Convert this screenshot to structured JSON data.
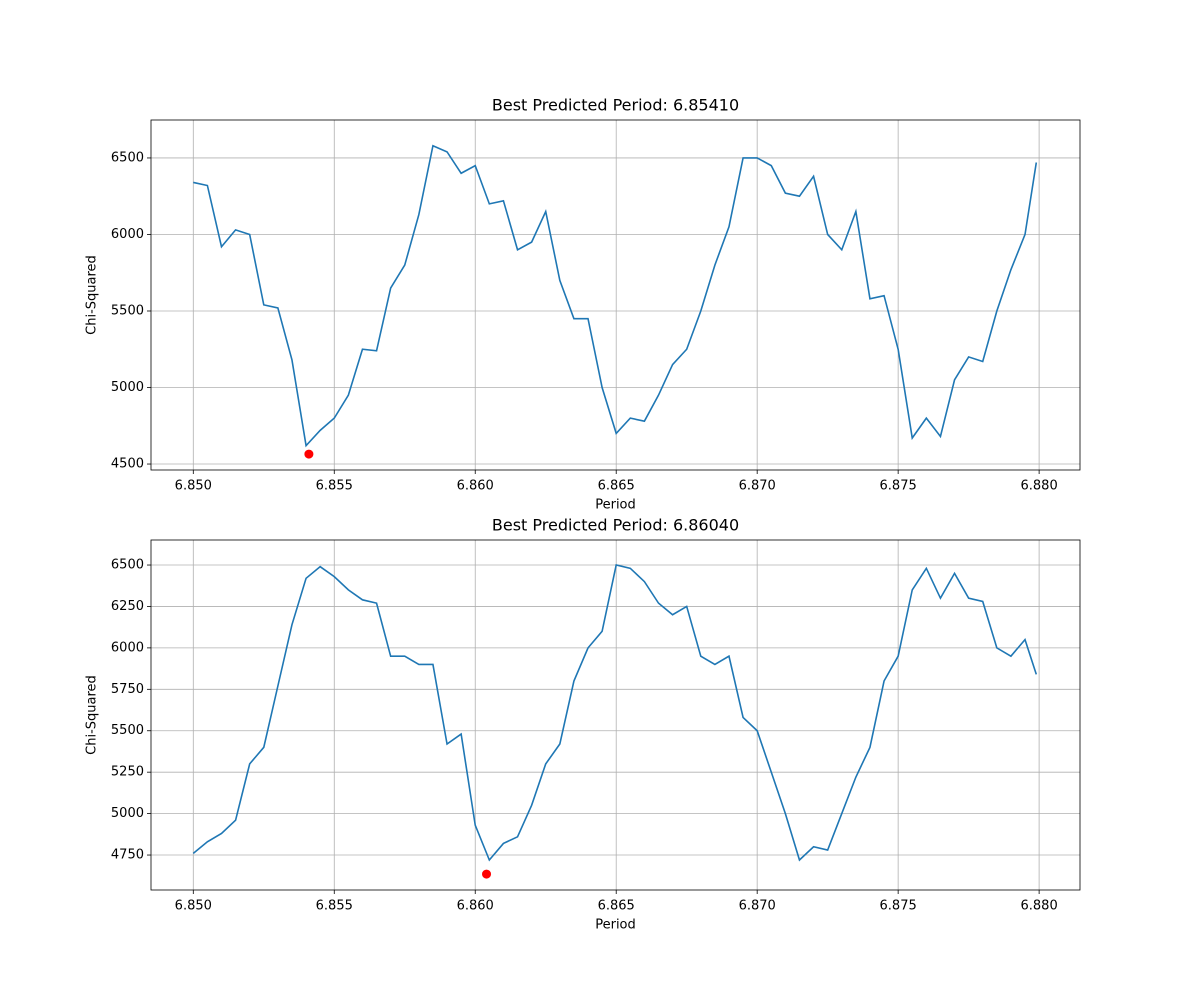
{
  "chart_data": [
    {
      "type": "line",
      "title": "Best Predicted Period: 6.85410",
      "xlabel": "Period",
      "ylabel": "Chi-Squared",
      "grid": true,
      "x": [
        6.85,
        6.8505,
        6.851,
        6.8515,
        6.852,
        6.8525,
        6.853,
        6.8535,
        6.854,
        6.8545,
        6.855,
        6.8555,
        6.856,
        6.8565,
        6.857,
        6.8575,
        6.858,
        6.8585,
        6.859,
        6.8595,
        6.86,
        6.8605,
        6.861,
        6.8615,
        6.862,
        6.8625,
        6.863,
        6.8635,
        6.864,
        6.8645,
        6.865,
        6.8655,
        6.866,
        6.8665,
        6.867,
        6.8675,
        6.868,
        6.8685,
        6.869,
        6.8695,
        6.87,
        6.8705,
        6.871,
        6.8715,
        6.872,
        6.8725,
        6.873,
        6.8735,
        6.874,
        6.8745,
        6.875,
        6.8755,
        6.876,
        6.8765,
        6.877,
        6.8775,
        6.878,
        6.8785,
        6.879,
        6.8795,
        6.8799
      ],
      "series": [
        {
          "color": "#1f77b4",
          "values": [
            6340,
            6320,
            5920,
            6030,
            6000,
            5540,
            5520,
            5180,
            4620,
            4720,
            4800,
            4950,
            5250,
            5240,
            5650,
            5800,
            6130,
            6580,
            6540,
            6400,
            6450,
            6200,
            6220,
            5900,
            5950,
            6150,
            5700,
            5450,
            5450,
            5000,
            4700,
            4800,
            4780,
            4950,
            5150,
            5250,
            5500,
            5800,
            6050,
            6500,
            6500,
            6450,
            6270,
            6250,
            6380,
            6000,
            5900,
            6150,
            5580,
            5600,
            5250,
            4670,
            4800,
            4680,
            5050,
            5200,
            5170,
            5500,
            5770,
            6000,
            6470
          ]
        }
      ],
      "best": {
        "x": 6.8541,
        "y": 4565,
        "color": "#ff0000"
      },
      "xlim": [
        6.8485,
        6.88145
      ],
      "ylim": [
        4461,
        6748
      ],
      "xticks": [
        {
          "value": 6.85,
          "label": "6.850"
        },
        {
          "value": 6.855,
          "label": "6.855"
        },
        {
          "value": 6.86,
          "label": "6.860"
        },
        {
          "value": 6.865,
          "label": "6.865"
        },
        {
          "value": 6.87,
          "label": "6.870"
        },
        {
          "value": 6.875,
          "label": "6.875"
        },
        {
          "value": 6.88,
          "label": "6.880"
        }
      ],
      "yticks": [
        4500,
        5000,
        5500,
        6000,
        6500
      ]
    },
    {
      "type": "line",
      "title": "Best Predicted Period: 6.86040",
      "xlabel": "Period",
      "ylabel": "Chi-Squared",
      "grid": true,
      "x": [
        6.85,
        6.8505,
        6.851,
        6.8515,
        6.852,
        6.8525,
        6.853,
        6.8535,
        6.854,
        6.8545,
        6.855,
        6.8555,
        6.856,
        6.8565,
        6.857,
        6.8575,
        6.858,
        6.8585,
        6.859,
        6.8595,
        6.86,
        6.8605,
        6.861,
        6.8615,
        6.862,
        6.8625,
        6.863,
        6.8635,
        6.864,
        6.8645,
        6.865,
        6.8655,
        6.866,
        6.8665,
        6.867,
        6.8675,
        6.868,
        6.8685,
        6.869,
        6.8695,
        6.87,
        6.8705,
        6.871,
        6.8715,
        6.872,
        6.8725,
        6.873,
        6.8735,
        6.874,
        6.8745,
        6.875,
        6.8755,
        6.876,
        6.8765,
        6.877,
        6.8775,
        6.878,
        6.8785,
        6.879,
        6.8795,
        6.8799
      ],
      "series": [
        {
          "color": "#1f77b4",
          "values": [
            4760,
            4830,
            4880,
            4960,
            5300,
            5400,
            5770,
            6140,
            6420,
            6490,
            6430,
            6350,
            6290,
            6270,
            5950,
            5950,
            5900,
            5900,
            5420,
            5480,
            4930,
            4720,
            4820,
            4860,
            5050,
            5300,
            5420,
            5800,
            6000,
            6100,
            6500,
            6480,
            6400,
            6270,
            6200,
            6250,
            5950,
            5900,
            5950,
            5580,
            5500,
            5250,
            5000,
            4720,
            4800,
            4780,
            5000,
            5220,
            5400,
            5800,
            5950,
            6350,
            6480,
            6300,
            6450,
            6300,
            6280,
            6000,
            5950,
            6050,
            5840
          ]
        }
      ],
      "best": {
        "x": 6.8604,
        "y": 4635,
        "color": "#ff0000"
      },
      "xlim": [
        6.8485,
        6.88145
      ],
      "ylim": [
        4539,
        6651
      ],
      "xticks": [
        {
          "value": 6.85,
          "label": "6.850"
        },
        {
          "value": 6.855,
          "label": "6.855"
        },
        {
          "value": 6.86,
          "label": "6.860"
        },
        {
          "value": 6.865,
          "label": "6.865"
        },
        {
          "value": 6.87,
          "label": "6.870"
        },
        {
          "value": 6.875,
          "label": "6.875"
        },
        {
          "value": 6.88,
          "label": "6.880"
        }
      ],
      "yticks": [
        4750,
        5000,
        5250,
        5500,
        5750,
        6000,
        6250,
        6500
      ]
    }
  ]
}
